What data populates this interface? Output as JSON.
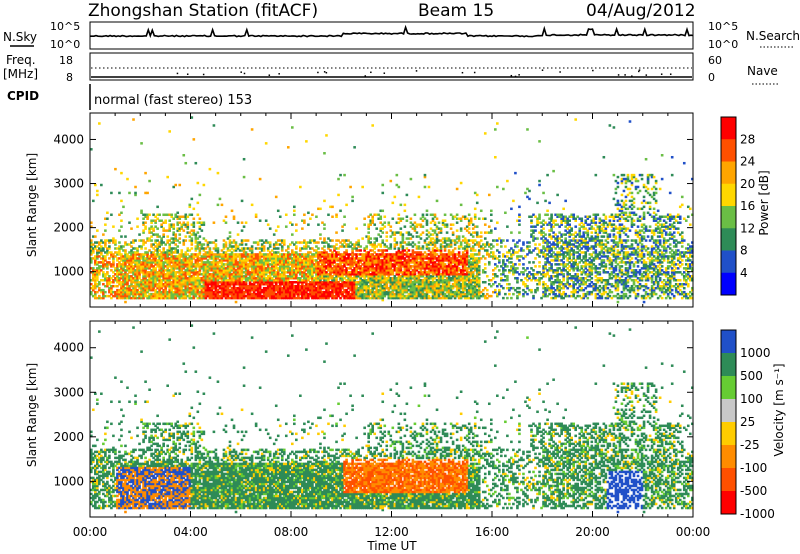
{
  "header": {
    "station": "Zhongshan Station (fitACF)",
    "beam": "Beam 15",
    "date": "04/Aug/2012"
  },
  "top_panels": {
    "nsky_label": "N.Sky",
    "nsky_ticks": [
      "10^5",
      "10^0"
    ],
    "nsearch_label": "N.Search",
    "freq_label_1": "Freq.",
    "freq_label_2": "[MHz]",
    "freq_ticks": [
      "18",
      "8"
    ],
    "nave_ticks": [
      "60",
      "0"
    ],
    "nave_label": "Nave",
    "cpid_label": "CPID",
    "cpid_text": "normal (fast stereo) 153"
  },
  "colors": {
    "power_scale": [
      "#0000ff",
      "#2050c8",
      "#2e8b57",
      "#6abe45",
      "#ffd700",
      "#ffa500",
      "#ff5000",
      "#ff0000"
    ],
    "velocity_scale": [
      "#ff0000",
      "#ff5000",
      "#ff8c00",
      "#ffcc00",
      "#c8c8c8",
      "#66cc33",
      "#2e8b57",
      "#2050c8"
    ]
  },
  "chart_data": [
    {
      "type": "heatmap",
      "ylabel": "Slant Range [km]",
      "colorbar_label": "Power [dB]",
      "colorbar_ticks": [
        "28",
        "24",
        "20",
        "16",
        "12",
        "8",
        "4"
      ],
      "xlim": [
        "00:00",
        "24:00"
      ],
      "ylim": [
        200,
        4600
      ],
      "yticks": [
        "4000",
        "3000",
        "2000",
        "1000"
      ],
      "cbar_range": [
        0,
        32
      ]
    },
    {
      "type": "heatmap",
      "ylabel": "Slant Range [km]",
      "colorbar_label": "Velocity [m s⁻¹]",
      "colorbar_ticks": [
        "1000",
        "500",
        "100",
        "25",
        "-25",
        "-100",
        "-500",
        "-1000"
      ],
      "xlim": [
        "00:00",
        "24:00"
      ],
      "ylim": [
        200,
        4600
      ],
      "yticks": [
        "4000",
        "3000",
        "2000",
        "1000"
      ]
    }
  ],
  "x_axis": {
    "label": "Time UT",
    "ticks": [
      "00:00",
      "04:00",
      "08:00",
      "12:00",
      "16:00",
      "20:00",
      "00:00"
    ]
  }
}
